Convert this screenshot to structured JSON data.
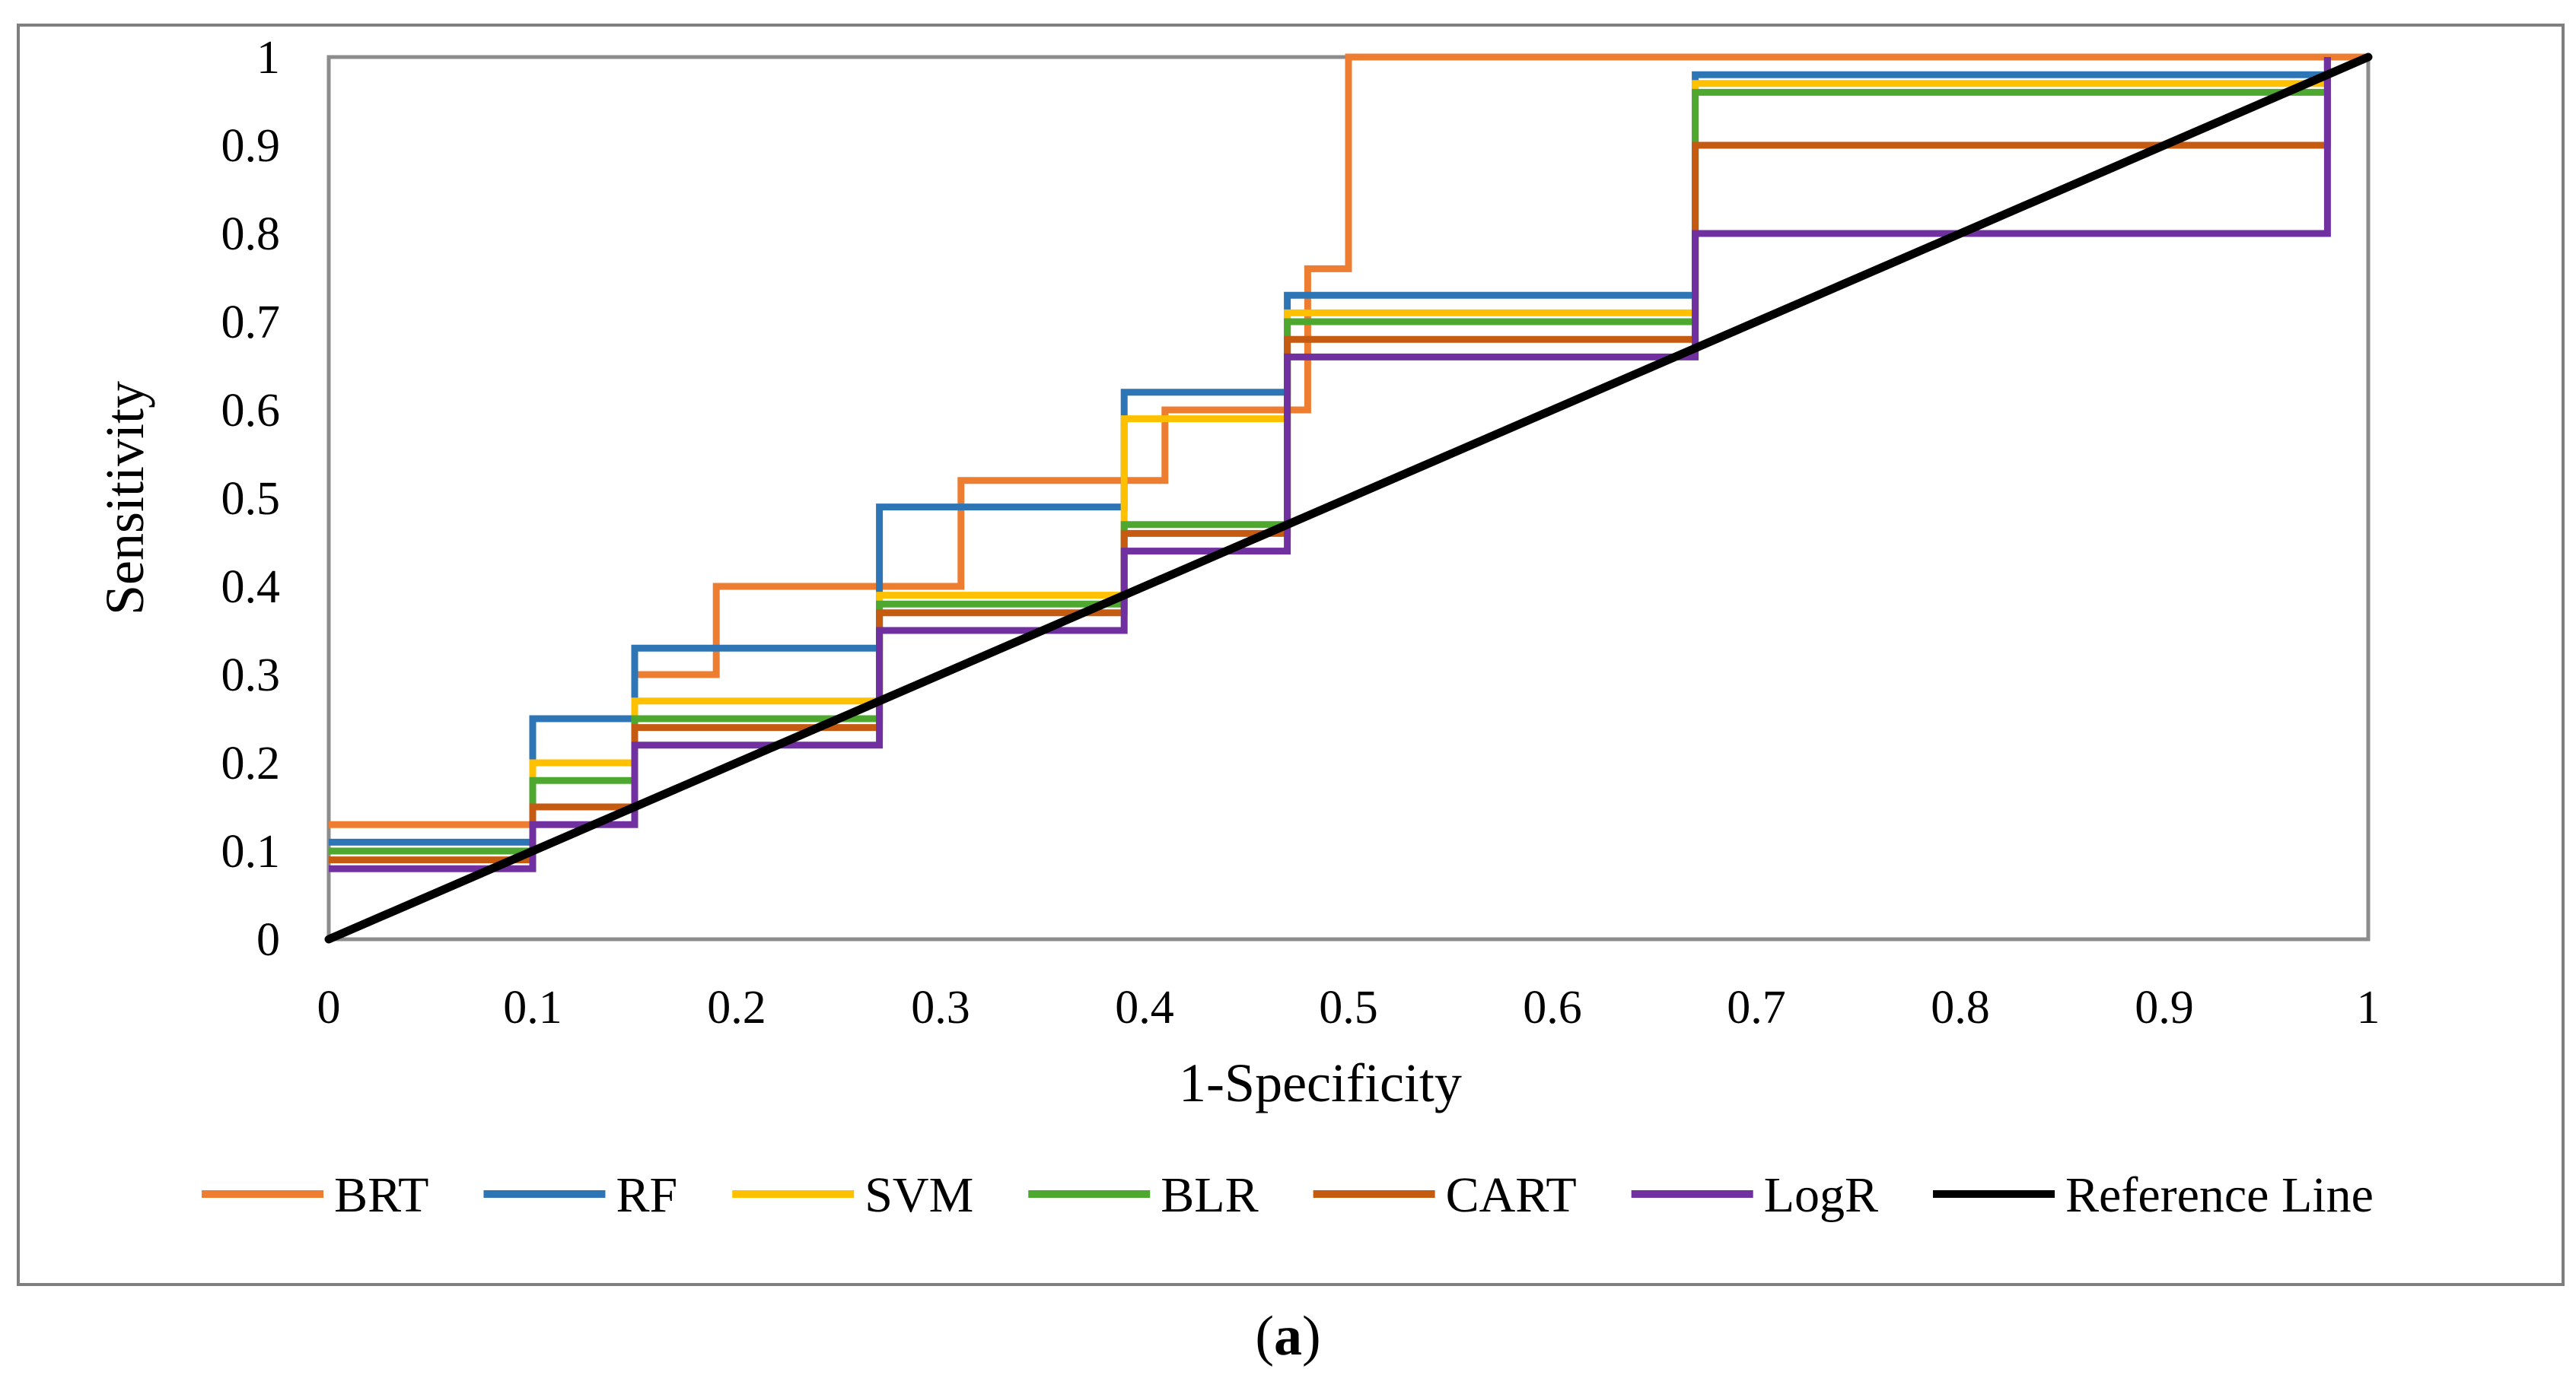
{
  "chart_data": {
    "type": "line",
    "title": "",
    "xlabel": "1-Specificity",
    "ylabel": "Sensitivity",
    "xlim": [
      0,
      1
    ],
    "ylim": [
      0,
      1
    ],
    "xticks": [
      "0",
      "0.1",
      "0.2",
      "0.3",
      "0.4",
      "0.5",
      "0.6",
      "0.7",
      "0.8",
      "0.9",
      "1"
    ],
    "yticks": [
      "0",
      "0.1",
      "0.2",
      "0.3",
      "0.4",
      "0.5",
      "0.6",
      "0.7",
      "0.8",
      "0.9",
      "1"
    ],
    "legend_position": "bottom",
    "series": [
      {
        "name": "BRT",
        "color": "#ED7D31",
        "x": [
          0,
          0.1,
          0.1,
          0.15,
          0.15,
          0.19,
          0.19,
          0.31,
          0.31,
          0.41,
          0.41,
          0.48,
          0.48,
          0.5,
          0.5,
          1.0
        ],
        "y": [
          0.13,
          0.13,
          0.25,
          0.25,
          0.3,
          0.3,
          0.4,
          0.4,
          0.52,
          0.52,
          0.6,
          0.6,
          0.76,
          0.76,
          1.0,
          1.0
        ]
      },
      {
        "name": "RF",
        "color": "#2E75B6",
        "x": [
          0,
          0.1,
          0.1,
          0.15,
          0.15,
          0.27,
          0.27,
          0.39,
          0.39,
          0.47,
          0.47,
          0.67,
          0.67,
          0.98,
          0.98
        ],
        "y": [
          0.11,
          0.11,
          0.25,
          0.25,
          0.33,
          0.33,
          0.49,
          0.49,
          0.62,
          0.62,
          0.73,
          0.73,
          0.98,
          0.98,
          1.0
        ]
      },
      {
        "name": "SVM",
        "color": "#FFC000",
        "x": [
          0,
          0.1,
          0.1,
          0.15,
          0.15,
          0.27,
          0.27,
          0.39,
          0.39,
          0.47,
          0.47,
          0.67,
          0.67,
          0.98,
          0.98
        ],
        "y": [
          0.1,
          0.1,
          0.2,
          0.2,
          0.27,
          0.27,
          0.39,
          0.39,
          0.59,
          0.59,
          0.71,
          0.71,
          0.97,
          0.97,
          1.0
        ]
      },
      {
        "name": "BLR",
        "color": "#4EA72E",
        "x": [
          0,
          0.1,
          0.1,
          0.15,
          0.15,
          0.27,
          0.27,
          0.39,
          0.39,
          0.47,
          0.47,
          0.67,
          0.67,
          0.98,
          0.98
        ],
        "y": [
          0.1,
          0.1,
          0.18,
          0.18,
          0.25,
          0.25,
          0.38,
          0.38,
          0.47,
          0.47,
          0.7,
          0.7,
          0.96,
          0.96,
          1.0
        ]
      },
      {
        "name": "CART",
        "color": "#C55A11",
        "x": [
          0,
          0.1,
          0.1,
          0.15,
          0.15,
          0.27,
          0.27,
          0.39,
          0.39,
          0.47,
          0.47,
          0.67,
          0.67,
          0.98,
          0.98
        ],
        "y": [
          0.09,
          0.09,
          0.15,
          0.15,
          0.24,
          0.24,
          0.37,
          0.37,
          0.46,
          0.46,
          0.68,
          0.68,
          0.9,
          0.9,
          1.0
        ]
      },
      {
        "name": "LogR",
        "color": "#7030A0",
        "x": [
          0,
          0.1,
          0.1,
          0.15,
          0.15,
          0.27,
          0.27,
          0.39,
          0.39,
          0.47,
          0.47,
          0.67,
          0.67,
          0.98,
          0.98
        ],
        "y": [
          0.08,
          0.08,
          0.13,
          0.13,
          0.22,
          0.22,
          0.35,
          0.35,
          0.44,
          0.44,
          0.66,
          0.66,
          0.8,
          0.8,
          1.0
        ]
      },
      {
        "name": "Reference Line",
        "color": "#000000",
        "x": [
          0,
          1
        ],
        "y": [
          0,
          1
        ]
      }
    ]
  },
  "caption": {
    "open": "(",
    "label": "a",
    "close": ")"
  }
}
